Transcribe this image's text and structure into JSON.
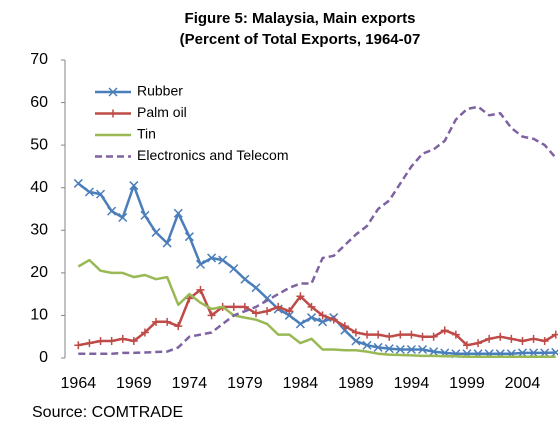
{
  "chart_data": {
    "type": "line",
    "title": "Figure 5: Malaysia, Main exports",
    "subtitle": "(Percent of Total Exports, 1964-07",
    "source": "Source: COMTRADE",
    "x": [
      1964,
      1965,
      1966,
      1967,
      1968,
      1969,
      1970,
      1971,
      1972,
      1973,
      1974,
      1975,
      1976,
      1977,
      1978,
      1979,
      1980,
      1981,
      1982,
      1983,
      1984,
      1985,
      1986,
      1987,
      1988,
      1989,
      1990,
      1991,
      1992,
      1993,
      1994,
      1995,
      1996,
      1997,
      1998,
      1999,
      2000,
      2001,
      2002,
      2003,
      2004,
      2005,
      2006,
      2007
    ],
    "xlim": [
      1962.8,
      2007.2
    ],
    "xticks": [
      1964,
      1969,
      1974,
      1979,
      1984,
      1989,
      1994,
      1999,
      2004
    ],
    "ylim": [
      0,
      70
    ],
    "yticks": [
      0,
      10,
      20,
      30,
      40,
      50,
      60,
      70
    ],
    "grid": false,
    "legend": "upper-left",
    "series": [
      {
        "name": "Rubber",
        "color": "#4a7ebb",
        "marker": "x",
        "dash": false,
        "values": [
          41,
          39,
          38.5,
          34.5,
          33,
          40.5,
          33.5,
          29.5,
          27,
          34,
          28.5,
          22,
          23.5,
          23,
          21,
          18.5,
          16.5,
          14,
          11.5,
          10,
          8,
          9.5,
          8.5,
          9.5,
          6.5,
          4,
          3,
          2.5,
          2.2,
          2,
          2,
          2,
          1.5,
          1.2,
          1,
          1,
          1,
          1,
          1,
          1,
          1.2,
          1.2,
          1.2,
          1.3
        ]
      },
      {
        "name": "Palm oil",
        "color": "#be4b48",
        "marker": "+",
        "dash": false,
        "values": [
          3,
          3.5,
          4,
          4,
          4.5,
          4,
          6,
          8.5,
          8.5,
          7.5,
          14,
          16,
          10,
          12,
          12,
          12,
          10.5,
          11,
          12,
          11,
          14.5,
          12,
          10,
          9,
          7.5,
          6,
          5.5,
          5.5,
          5,
          5.5,
          5.5,
          5,
          5,
          6.5,
          5.5,
          3,
          3.5,
          4.5,
          5,
          4.5,
          4,
          4.5,
          4,
          5.5
        ]
      },
      {
        "name": "Tin",
        "color": "#98b954",
        "marker": "none",
        "dash": false,
        "values": [
          21.5,
          23,
          20.5,
          20,
          20,
          19,
          19.5,
          18.5,
          19,
          12.5,
          15,
          13,
          11.5,
          12,
          10,
          9.5,
          9,
          8,
          5.5,
          5.5,
          3.5,
          4.5,
          2,
          2,
          1.8,
          1.8,
          1.5,
          1,
          0.8,
          0.7,
          0.6,
          0.5,
          0.5,
          0.4,
          0.4,
          0.3,
          0.3,
          0.3,
          0.3,
          0.3,
          0.3,
          0.3,
          0.3,
          0.3
        ]
      },
      {
        "name": "Electronics and Telecom",
        "color": "#7e62a1",
        "marker": "none",
        "dash": true,
        "values": [
          1,
          1,
          1,
          1,
          1.2,
          1.2,
          1.3,
          1.4,
          1.5,
          2.5,
          5,
          5.5,
          6,
          8,
          10,
          11,
          12,
          13.5,
          15,
          16.5,
          17.5,
          17.5,
          23.5,
          24,
          26.5,
          29,
          31,
          35,
          37,
          41,
          45,
          48,
          49,
          51,
          56,
          58.5,
          59,
          57,
          57.5,
          54,
          52,
          51.5,
          50,
          47
        ]
      }
    ]
  }
}
